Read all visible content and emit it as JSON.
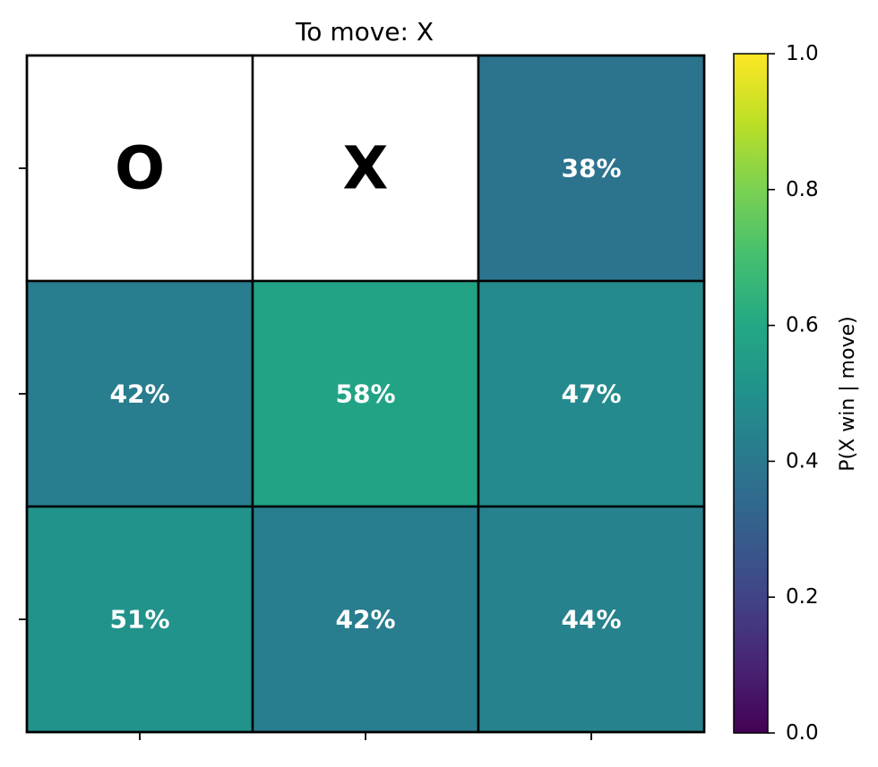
{
  "chart_data": {
    "type": "heatmap",
    "title": "To move: X",
    "rows": 3,
    "cols": 3,
    "cells": [
      [
        {
          "piece": "O"
        },
        {
          "piece": "X"
        },
        {
          "value": 0.38,
          "label": "38%"
        }
      ],
      [
        {
          "value": 0.42,
          "label": "42%"
        },
        {
          "value": 0.58,
          "label": "58%"
        },
        {
          "value": 0.47,
          "label": "47%"
        }
      ],
      [
        {
          "value": 0.51,
          "label": "51%"
        },
        {
          "value": 0.42,
          "label": "42%"
        },
        {
          "value": 0.44,
          "label": "44%"
        }
      ]
    ],
    "colorbar": {
      "label": "P(X win | move)",
      "colormap": "viridis",
      "vmin": 0.0,
      "vmax": 1.0,
      "ticks": [
        0.0,
        0.2,
        0.4,
        0.6,
        0.8,
        1.0
      ],
      "tick_labels": [
        "0.0",
        "0.2",
        "0.4",
        "0.6",
        "0.8",
        "1.0"
      ]
    },
    "xlabel": "",
    "ylabel": "",
    "grid": false
  }
}
